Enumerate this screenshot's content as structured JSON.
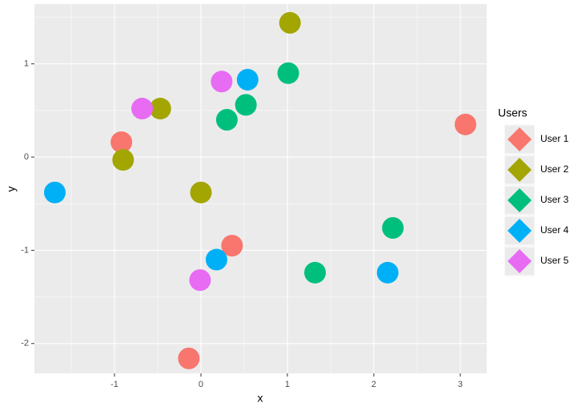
{
  "chart_data": {
    "type": "scatter",
    "x_label": "x",
    "y_label": "y",
    "legend_title": "Users",
    "xlim": [
      -1.926,
      3.306
    ],
    "ylim": [
      -2.32,
      1.642
    ],
    "xticks": [
      -1,
      0,
      1,
      2,
      3
    ],
    "yticks": [
      -2,
      -1,
      0,
      1
    ],
    "grid": true,
    "legend_position": "right",
    "series": [
      {
        "name": "User 1",
        "color": "#F8766D",
        "x": [
          3.06,
          -0.92,
          0.36,
          -0.14
        ],
        "y": [
          0.35,
          0.16,
          -0.95,
          -2.16
        ]
      },
      {
        "name": "User 2",
        "color": "#A3A500",
        "x": [
          1.03,
          -0.47,
          -0.9,
          0.0
        ],
        "y": [
          1.44,
          0.52,
          -0.03,
          -0.38
        ]
      },
      {
        "name": "User 3",
        "color": "#00BF7D",
        "x": [
          1.01,
          0.52,
          0.3,
          2.22,
          1.32
        ],
        "y": [
          0.9,
          0.56,
          0.4,
          -0.76,
          -1.24
        ]
      },
      {
        "name": "User 4",
        "color": "#00B0F6",
        "x": [
          0.54,
          -1.69,
          0.18,
          2.16
        ],
        "y": [
          0.83,
          -0.38,
          -1.1,
          -1.24
        ]
      },
      {
        "name": "User 5",
        "color": "#E76BF3",
        "x": [
          0.24,
          -0.68,
          -0.01
        ],
        "y": [
          0.81,
          0.52,
          -1.32
        ]
      }
    ]
  }
}
